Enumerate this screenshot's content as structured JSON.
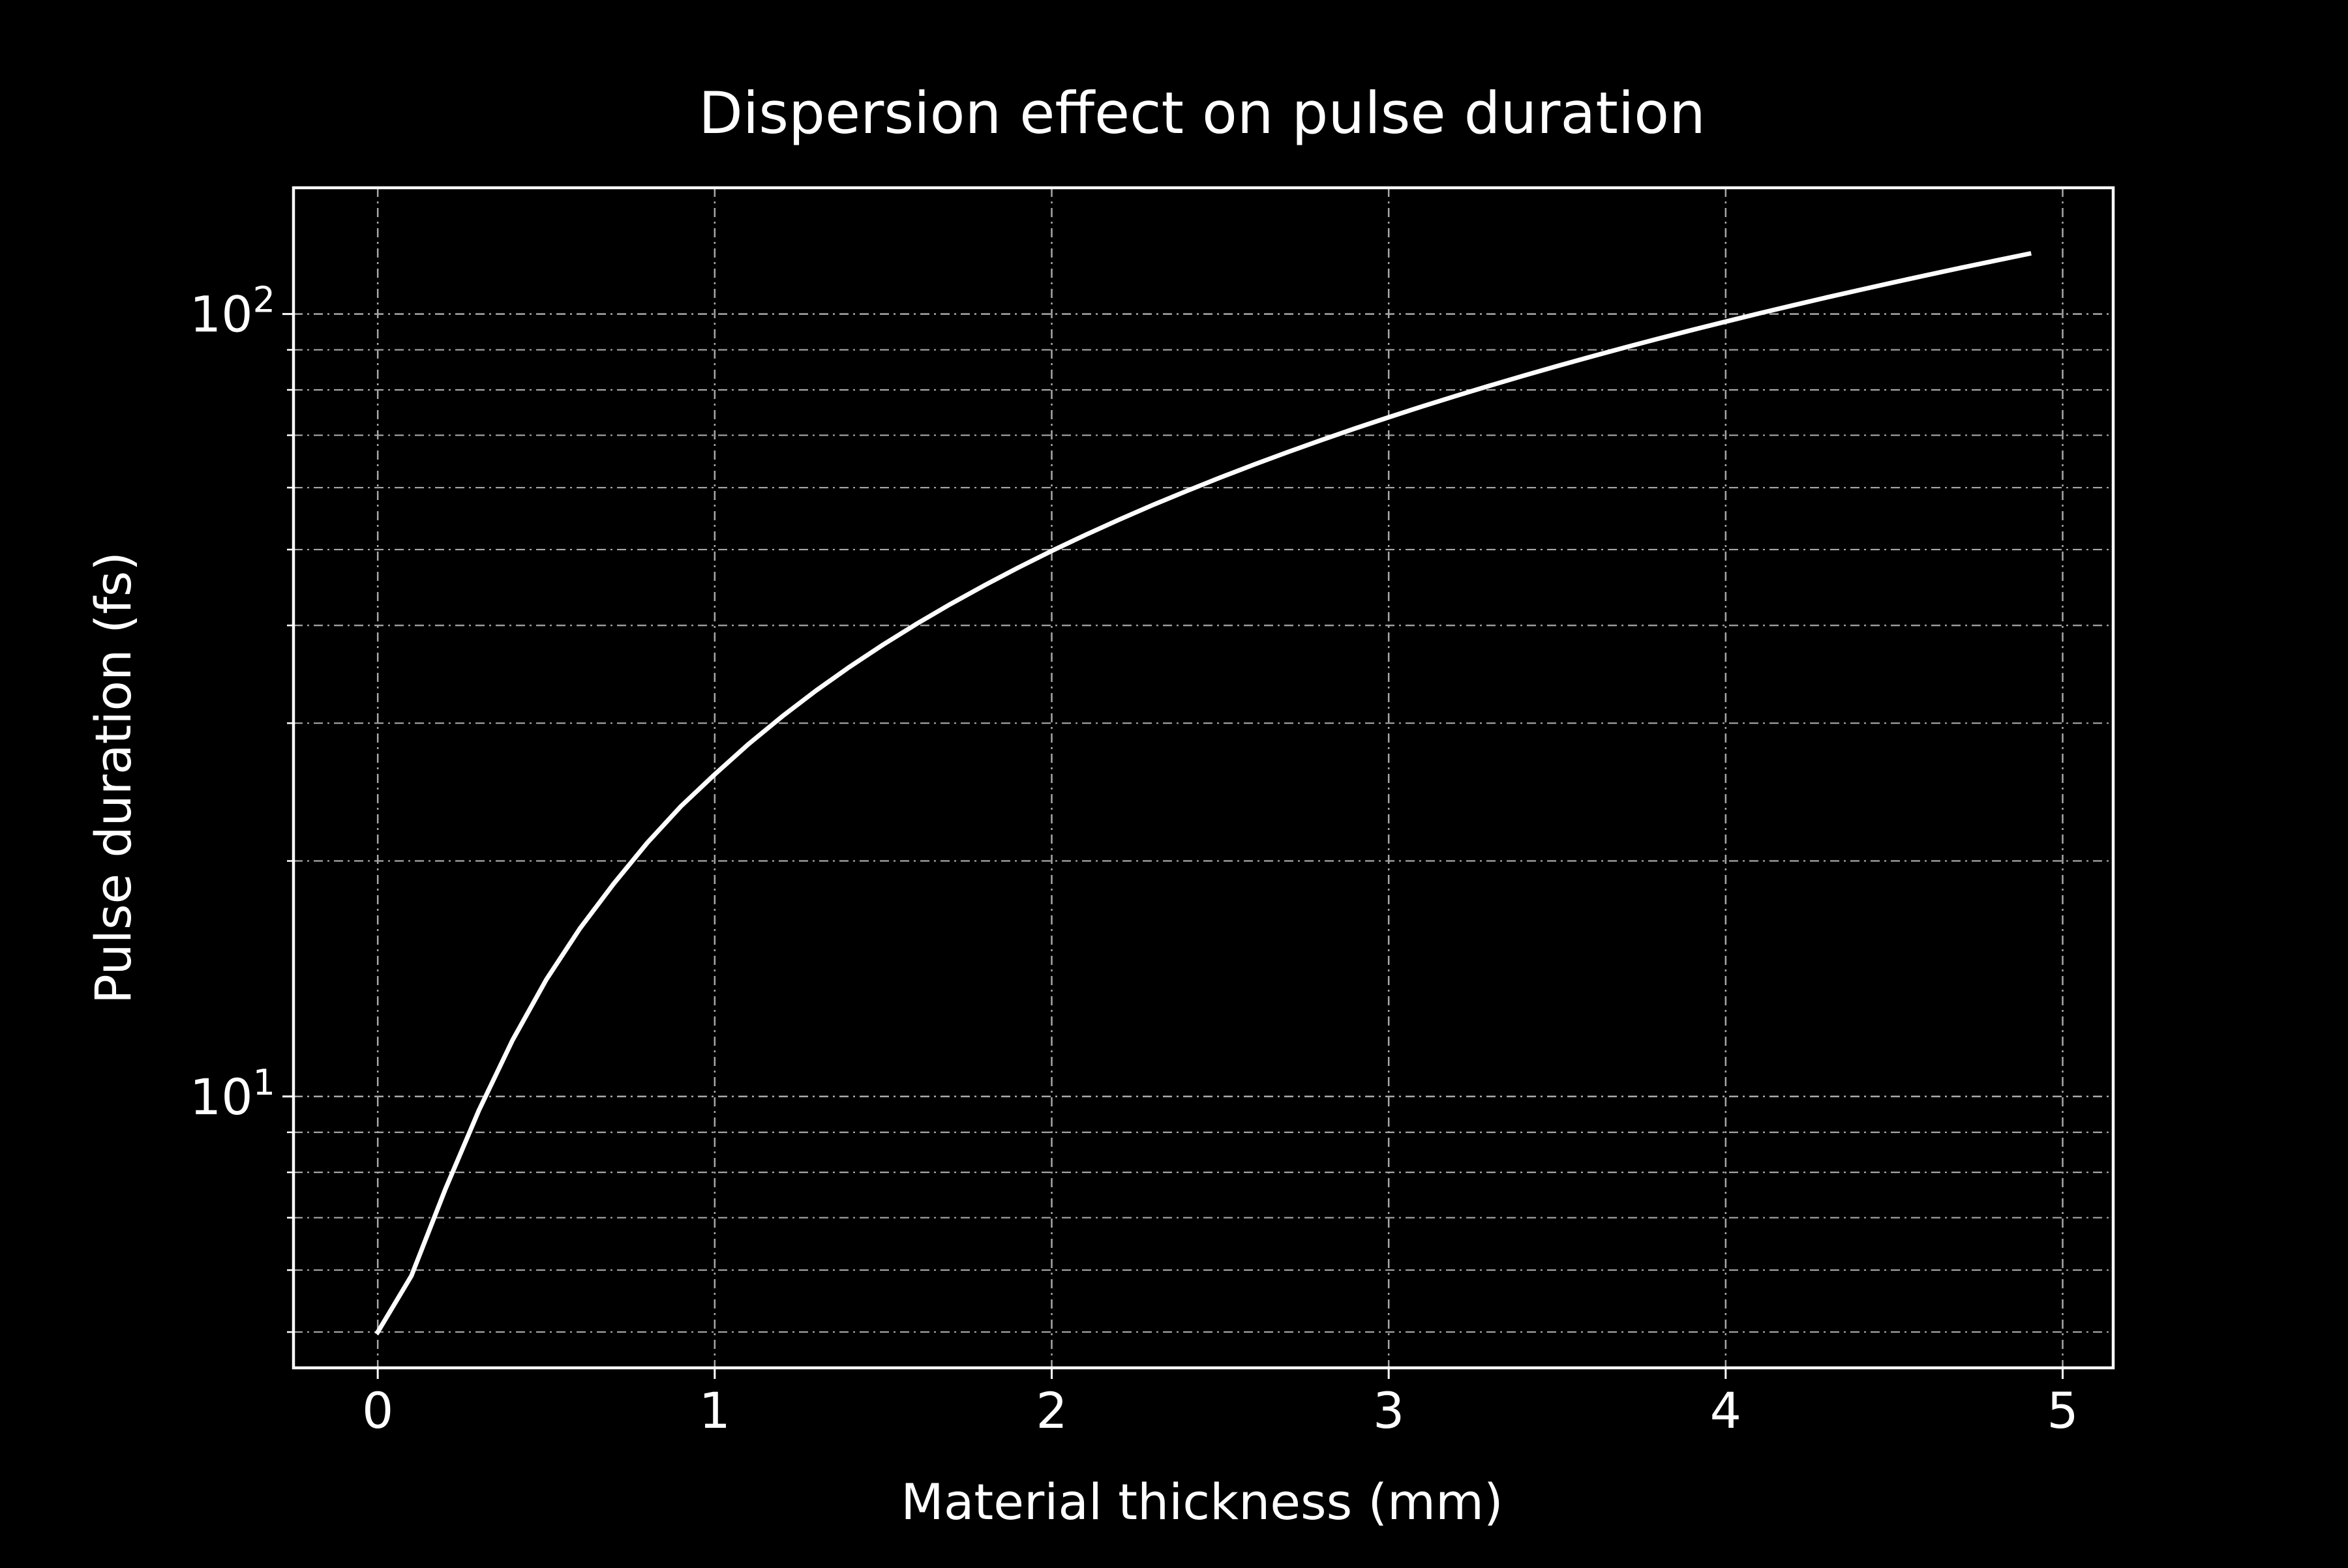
{
  "chart_data": {
    "type": "line",
    "title": "Dispersion effect on pulse duration",
    "xlabel": "Material thickness (mm)",
    "ylabel": "Pulse duration (fs)",
    "xlim": [
      -0.25,
      5.15
    ],
    "ylim": [
      4.5,
      145
    ],
    "yscale": "log",
    "grid": true,
    "x_ticks": [
      0,
      1,
      2,
      3,
      4,
      5
    ],
    "x_tick_labels": [
      "0",
      "1",
      "2",
      "3",
      "4",
      "5"
    ],
    "y_ticks": [
      10,
      100
    ],
    "y_tick_labels": [
      {
        "base": "10",
        "exp": "1"
      },
      {
        "base": "10",
        "exp": "2"
      }
    ],
    "y_minor_ticks": [
      5,
      6,
      7,
      8,
      9,
      20,
      30,
      40,
      50,
      60,
      70,
      80,
      90
    ],
    "series": [
      {
        "color": "#ffffff",
        "x": [
          0.0,
          0.1,
          0.2,
          0.3,
          0.4,
          0.5,
          0.6,
          0.7,
          0.8,
          0.9,
          1.0,
          1.1,
          1.2,
          1.3,
          1.4,
          1.5,
          1.6,
          1.7,
          1.8,
          1.9,
          2.0,
          2.1,
          2.2,
          2.3,
          2.4,
          2.5,
          2.6,
          2.7,
          2.8,
          2.9,
          3.0,
          3.1,
          3.2,
          3.3,
          3.4,
          3.5,
          3.6,
          3.7,
          3.8,
          3.9,
          4.0,
          4.1,
          4.2,
          4.3,
          4.4,
          4.5,
          4.6,
          4.7,
          4.8,
          4.9
        ],
        "y": [
          5.0,
          5.9,
          7.6,
          9.6,
          11.8,
          14.1,
          16.4,
          18.7,
          21.1,
          23.5,
          25.8,
          28.2,
          30.6,
          33.0,
          35.4,
          37.8,
          40.2,
          42.6,
          45.0,
          47.4,
          49.8,
          52.2,
          54.6,
          57.0,
          59.4,
          61.8,
          64.2,
          66.6,
          69.0,
          71.4,
          73.8,
          76.2,
          78.6,
          81.0,
          83.4,
          85.8,
          88.2,
          90.6,
          93.0,
          95.4,
          97.8,
          100.2,
          102.6,
          105.0,
          107.4,
          109.8,
          112.2,
          114.6,
          117.0,
          119.4
        ]
      }
    ]
  }
}
